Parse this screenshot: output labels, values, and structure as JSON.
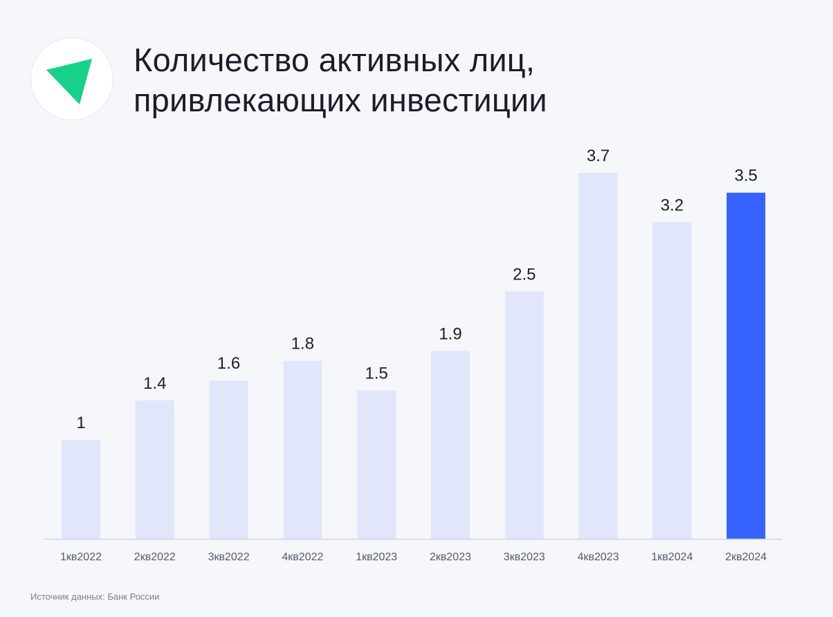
{
  "title": {
    "line1": "Количество активных лиц,",
    "line2": "привлекающих инвестиции"
  },
  "logo": {
    "icon": "green-triangle-logo",
    "color": "#17d18b"
  },
  "source": "Источник данных: Банк России",
  "colors": {
    "bar": "#e1e6fb",
    "highlight": "#3662ff",
    "axis": "#cfd3de",
    "value_label": "#1c1d2b",
    "tick_label": "#55596a"
  },
  "chart_data": {
    "type": "bar",
    "categories": [
      "1кв2022",
      "2кв2022",
      "3кв2022",
      "4кв2022",
      "1кв2023",
      "2кв2023",
      "3кв2023",
      "4кв2023",
      "1кв2024",
      "2кв2024"
    ],
    "values": [
      1,
      1.4,
      1.6,
      1.8,
      1.5,
      1.9,
      2.5,
      3.7,
      3.2,
      3.5
    ],
    "value_labels": [
      "1",
      "1.4",
      "1.6",
      "1.8",
      "1.5",
      "1.9",
      "2.5",
      "3.7",
      "3.2",
      "3.5"
    ],
    "highlight_index": 9,
    "ylim": [
      0,
      3.7
    ],
    "grid": false,
    "legend": "none"
  }
}
